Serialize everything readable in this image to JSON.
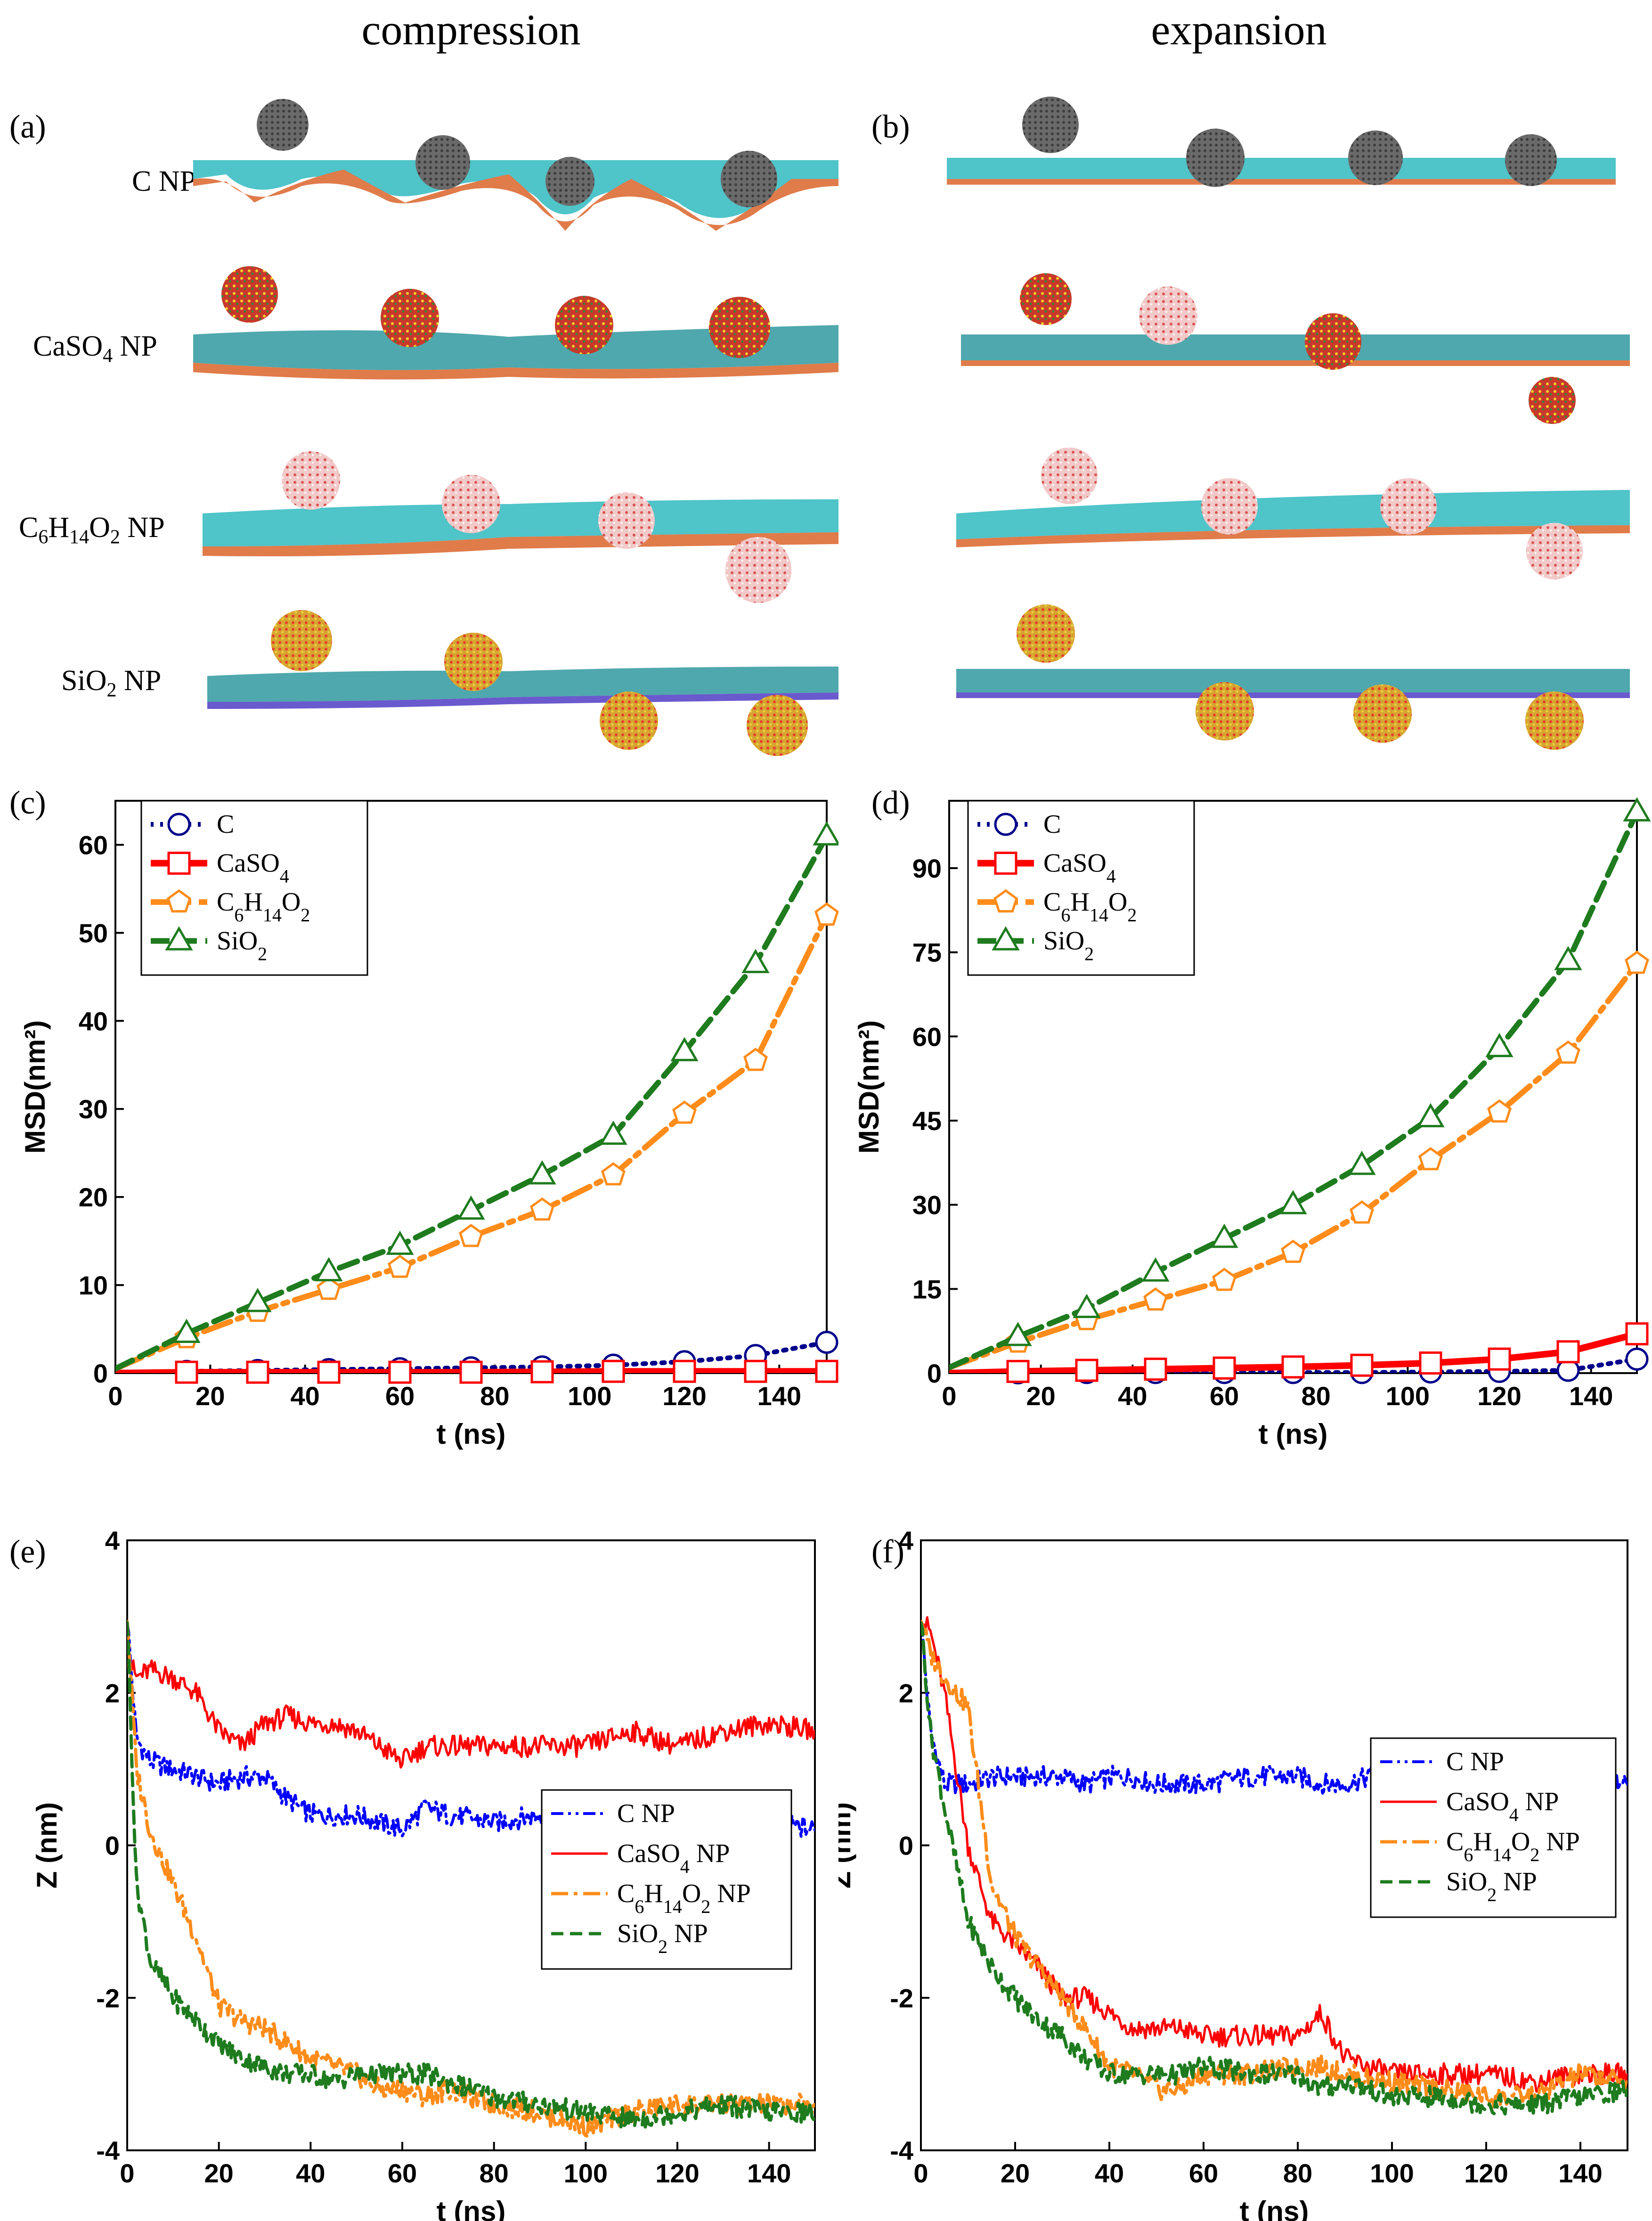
{
  "headers": {
    "left": "compression",
    "right": "expansion"
  },
  "panel_labels": [
    "(a)",
    "(b)",
    "(c)",
    "(d)",
    "(e)",
    "(f)"
  ],
  "np_labels": [
    {
      "main": "C NP",
      "sub": ""
    },
    {
      "main": "CaSO",
      "sub": "4",
      "tail": " NP"
    },
    {
      "main": "C",
      "sub": "6",
      "mid": "H",
      "sub2": "14",
      "mid2": "O",
      "sub3": "2",
      "tail": " NP"
    },
    {
      "main": "SiO",
      "sub": "2",
      "tail": " NP"
    }
  ],
  "colors": {
    "C": "#00008b",
    "CaSO4": "#ff0000",
    "C6H14O2": "#ff8c1a",
    "SiO2": "#1e7b1e",
    "C_z": "#0000ff",
    "membrane": "#4fc4c9",
    "np_gray": "#555555"
  },
  "chart_data": [
    {
      "type": "line",
      "panel": "(c)",
      "xlabel": "t (ns)",
      "ylabel": "MSD(nm²)",
      "xlim": [
        0,
        150
      ],
      "ylim": [
        0,
        65
      ],
      "xticks": [
        0,
        20,
        40,
        60,
        80,
        100,
        120,
        140
      ],
      "yticks": [
        0,
        10,
        20,
        30,
        40,
        50,
        60
      ],
      "legend": [
        "C",
        "CaSO4",
        "C6H14O2",
        "SiO2"
      ],
      "x": [
        0,
        15,
        30,
        45,
        60,
        75,
        90,
        105,
        120,
        135,
        150
      ],
      "series": [
        {
          "name": "C",
          "values": [
            0,
            0.2,
            0.3,
            0.4,
            0.5,
            0.6,
            0.7,
            0.9,
            1.3,
            2.0,
            3.5
          ]
        },
        {
          "name": "CaSO4",
          "values": [
            0,
            0.1,
            0.1,
            0.1,
            0.1,
            0.1,
            0.15,
            0.2,
            0.2,
            0.2,
            0.2
          ]
        },
        {
          "name": "C6H14O2",
          "values": [
            0.5,
            4.0,
            7.0,
            9.5,
            12.0,
            15.5,
            18.5,
            22.5,
            29.5,
            35.5,
            52.0
          ]
        },
        {
          "name": "SiO2",
          "values": [
            0.5,
            4.5,
            8.0,
            11.5,
            14.5,
            18.5,
            22.5,
            27.0,
            36.5,
            46.5,
            61.0
          ]
        }
      ]
    },
    {
      "type": "line",
      "panel": "(d)",
      "xlabel": "t (ns)",
      "ylabel": "MSD(nm²)",
      "xlim": [
        0,
        150
      ],
      "ylim": [
        0,
        102
      ],
      "xticks": [
        0,
        20,
        40,
        60,
        80,
        100,
        120,
        140
      ],
      "yticks": [
        0,
        15,
        30,
        45,
        60,
        75,
        90
      ],
      "legend": [
        "C",
        "CaSO4",
        "C6H14O2",
        "SiO2"
      ],
      "x": [
        0,
        15,
        30,
        45,
        60,
        75,
        90,
        105,
        120,
        135,
        150
      ],
      "series": [
        {
          "name": "C",
          "values": [
            0,
            0.05,
            0.1,
            0.1,
            0.1,
            0.1,
            0.1,
            0.2,
            0.3,
            0.5,
            2.5
          ]
        },
        {
          "name": "CaSO4",
          "values": [
            0,
            0.3,
            0.5,
            0.7,
            0.9,
            1.1,
            1.4,
            1.8,
            2.5,
            3.8,
            7.0
          ]
        },
        {
          "name": "C6H14O2",
          "values": [
            1.0,
            5.5,
            9.5,
            13.0,
            16.5,
            21.5,
            28.5,
            38.0,
            46.5,
            57.0,
            73.0
          ]
        },
        {
          "name": "SiO2",
          "values": [
            1.0,
            6.5,
            11.5,
            18.0,
            24.0,
            30.0,
            37.0,
            45.5,
            58.0,
            73.5,
            100.0
          ]
        }
      ]
    },
    {
      "type": "line",
      "panel": "(e)",
      "xlabel": "t (ns)",
      "ylabel": "Z (nm)",
      "xlim": [
        0,
        150
      ],
      "ylim": [
        -4,
        4
      ],
      "xticks": [
        0,
        20,
        40,
        60,
        80,
        100,
        120,
        140
      ],
      "yticks": [
        -4,
        -2,
        0,
        2,
        4
      ],
      "legend": [
        "C NP",
        "CaSO4 NP",
        "C6H14O2 NP",
        "SiO2 NP"
      ],
      "x": [
        0,
        2,
        5,
        10,
        15,
        20,
        25,
        30,
        35,
        40,
        45,
        50,
        55,
        60,
        65,
        70,
        80,
        90,
        100,
        110,
        120,
        130,
        140,
        150
      ],
      "series": [
        {
          "name": "C NP",
          "values": [
            3.0,
            1.4,
            1.1,
            1.0,
            0.9,
            0.8,
            0.9,
            0.9,
            0.6,
            0.4,
            0.4,
            0.4,
            0.3,
            0.2,
            0.5,
            0.4,
            0.3,
            0.4,
            0.3,
            0.3,
            0.2,
            0.2,
            0.3,
            0.2
          ]
        },
        {
          "name": "CaSO4 NP",
          "values": [
            2.5,
            2.2,
            2.3,
            2.2,
            2.0,
            1.5,
            1.3,
            1.6,
            1.7,
            1.6,
            1.6,
            1.5,
            1.3,
            1.1,
            1.3,
            1.3,
            1.3,
            1.3,
            1.3,
            1.5,
            1.3,
            1.5,
            1.6,
            1.5
          ]
        },
        {
          "name": "C6H14O2 NP",
          "values": [
            3.0,
            1.0,
            0.2,
            -0.5,
            -1.2,
            -2.1,
            -2.3,
            -2.4,
            -2.6,
            -2.8,
            -2.9,
            -3.0,
            -3.2,
            -3.2,
            -3.3,
            -3.2,
            -3.4,
            -3.5,
            -3.7,
            -3.5,
            -3.4,
            -3.4,
            -3.4,
            -3.4
          ]
        },
        {
          "name": "SiO2 NP",
          "values": [
            3.0,
            -0.5,
            -1.5,
            -2.0,
            -2.3,
            -2.6,
            -2.8,
            -2.9,
            -3.0,
            -3.0,
            -3.1,
            -3.0,
            -3.0,
            -3.0,
            -3.0,
            -3.1,
            -3.3,
            -3.4,
            -3.5,
            -3.6,
            -3.5,
            -3.4,
            -3.5,
            -3.5
          ]
        }
      ]
    },
    {
      "type": "line",
      "panel": "(f)",
      "xlabel": "t (ns)",
      "ylabel": "Z (nm)",
      "xlim": [
        0,
        150
      ],
      "ylim": [
        -4,
        4
      ],
      "xticks": [
        0,
        20,
        40,
        60,
        80,
        100,
        120,
        140
      ],
      "yticks": [
        -4,
        -2,
        0,
        2,
        4
      ],
      "legend": [
        "C NP",
        "CaSO4 NP",
        "C6H14O2 NP",
        "SiO2 NP"
      ],
      "x": [
        0,
        2,
        5,
        10,
        15,
        20,
        25,
        30,
        35,
        40,
        45,
        50,
        55,
        60,
        70,
        80,
        85,
        90,
        100,
        110,
        120,
        130,
        140,
        150
      ],
      "series": [
        {
          "name": "C NP",
          "values": [
            3.0,
            1.5,
            0.8,
            0.8,
            0.9,
            0.9,
            0.9,
            0.9,
            0.8,
            0.9,
            0.9,
            0.8,
            0.8,
            0.8,
            0.9,
            0.9,
            0.8,
            0.8,
            1.0,
            0.9,
            0.9,
            0.9,
            0.9,
            0.8
          ]
        },
        {
          "name": "CaSO4 NP",
          "values": [
            3.0,
            2.8,
            2.0,
            0.0,
            -1.0,
            -1.3,
            -1.6,
            -2.0,
            -2.0,
            -2.2,
            -2.4,
            -2.4,
            -2.4,
            -2.5,
            -2.5,
            -2.5,
            -2.2,
            -2.8,
            -3.0,
            -3.0,
            -3.0,
            -3.1,
            -3.0,
            -3.0
          ]
        },
        {
          "name": "C6H14O2 NP",
          "values": [
            3.0,
            2.5,
            2.2,
            1.8,
            -0.5,
            -1.2,
            -1.6,
            -2.0,
            -2.4,
            -2.9,
            -3.0,
            -3.2,
            -3.2,
            -3.0,
            -3.0,
            -2.9,
            -2.9,
            -3.0,
            -3.1,
            -3.2,
            -3.3,
            -3.3,
            -3.0,
            -3.1
          ]
        },
        {
          "name": "SiO2 NP",
          "values": [
            3.0,
            1.5,
            0.5,
            -1.0,
            -1.6,
            -2.0,
            -2.3,
            -2.5,
            -2.8,
            -3.0,
            -3.0,
            -3.0,
            -3.0,
            -2.9,
            -3.0,
            -3.0,
            -3.2,
            -3.1,
            -3.3,
            -3.3,
            -3.4,
            -3.4,
            -3.3,
            -3.2
          ]
        }
      ]
    }
  ]
}
